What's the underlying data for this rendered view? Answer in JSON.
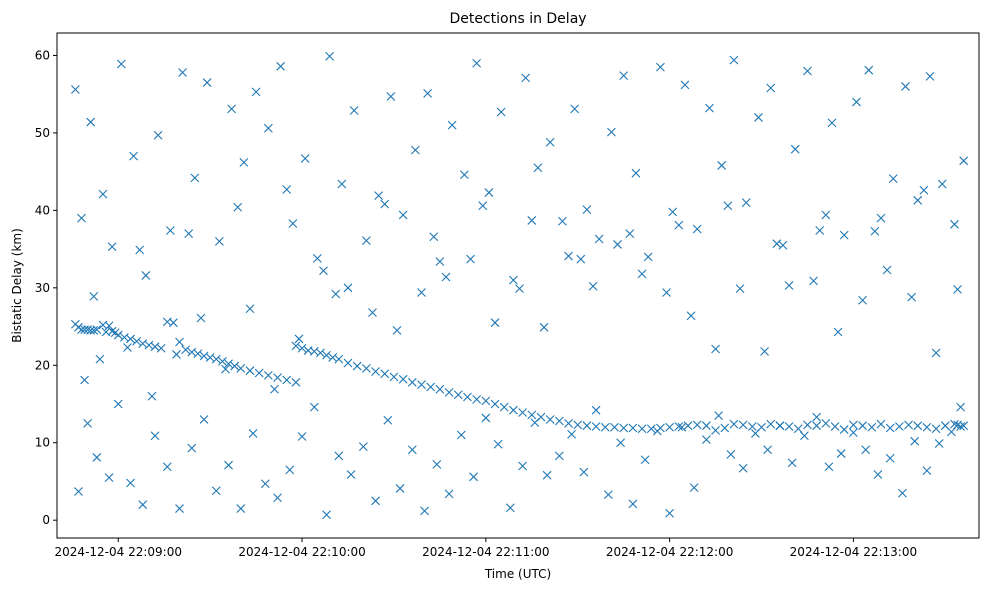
{
  "chart_data": {
    "type": "scatter",
    "title": "Detections in Delay",
    "xlabel": "Time (UTC)",
    "ylabel": "Bistatic Delay (km)",
    "marker": "x",
    "color": "#1f77b4",
    "xlim": [
      "2024-12-04 22:08:40",
      "2024-12-04 22:13:41"
    ],
    "ylim": [
      -2.3,
      62.9
    ],
    "xticks": [
      "2024-12-04 22:09:00",
      "2024-12-04 22:10:00",
      "2024-12-04 22:11:00",
      "2024-12-04 22:12:00",
      "2024-12-04 22:13:00"
    ],
    "yticks": [
      0,
      10,
      20,
      30,
      40,
      50,
      60
    ],
    "grid": false,
    "legend": "none",
    "series": [
      {
        "x": [
          "22:08:46",
          "22:08:47",
          "22:08:48",
          "22:08:49",
          "22:08:50",
          "22:08:51",
          "22:08:52",
          "22:08:53",
          "22:08:55",
          "22:08:56",
          "22:08:57",
          "22:08:58",
          "22:08:59",
          "22:09:00",
          "22:09:02",
          "22:09:04",
          "22:09:06",
          "22:09:08",
          "22:09:10",
          "22:09:12",
          "22:09:14",
          "22:09:16",
          "22:09:18",
          "22:09:20",
          "22:09:22",
          "22:09:24",
          "22:09:26",
          "22:09:28",
          "22:09:30",
          "22:09:32",
          "22:09:34",
          "22:09:36",
          "22:09:38",
          "22:09:40",
          "22:09:43",
          "22:09:46",
          "22:09:49",
          "22:09:52",
          "22:09:55",
          "22:09:58",
          "22:09:58",
          "22:10:00",
          "22:10:02",
          "22:10:04",
          "22:10:06",
          "22:10:08",
          "22:10:10",
          "22:10:12",
          "22:10:15",
          "22:10:18",
          "22:10:21",
          "22:10:24",
          "22:10:27",
          "22:10:30",
          "22:10:33",
          "22:10:36",
          "22:10:39",
          "22:10:42",
          "22:10:45",
          "22:10:48",
          "22:10:51",
          "22:10:54",
          "22:10:57",
          "22:11:00",
          "22:11:03",
          "22:11:06",
          "22:11:09",
          "22:11:12",
          "22:11:15",
          "22:11:18",
          "22:11:21",
          "22:11:24",
          "22:11:27",
          "22:11:30",
          "22:11:33",
          "22:11:36",
          "22:11:39",
          "22:11:42",
          "22:11:45",
          "22:11:48",
          "22:11:51",
          "22:11:54",
          "22:11:57",
          "22:12:00",
          "22:12:03",
          "22:12:06",
          "22:12:09",
          "22:12:12",
          "22:12:15",
          "22:12:18",
          "22:12:21",
          "22:12:24",
          "22:12:27",
          "22:12:30",
          "22:12:33",
          "22:12:36",
          "22:12:39",
          "22:12:42",
          "22:12:45",
          "22:12:48",
          "22:12:51",
          "22:12:54",
          "22:12:57",
          "22:13:00",
          "22:13:03",
          "22:13:06",
          "22:13:09",
          "22:13:12",
          "22:13:15",
          "22:13:18",
          "22:13:21",
          "22:13:24",
          "22:13:27",
          "22:13:30",
          "22:13:33",
          "22:13:34",
          "22:13:35",
          "22:13:36",
          "22:08:46",
          "22:08:48",
          "22:08:51",
          "22:08:55",
          "22:08:58",
          "22:09:01",
          "22:09:05",
          "22:09:09",
          "22:09:13",
          "22:09:17",
          "22:09:21",
          "22:09:25",
          "22:09:29",
          "22:09:33",
          "22:09:37",
          "22:09:41",
          "22:09:45",
          "22:09:49",
          "22:09:53",
          "22:09:57",
          "22:10:01",
          "22:10:05",
          "22:10:09",
          "22:10:13",
          "22:10:17",
          "22:10:21",
          "22:10:25",
          "22:10:29",
          "22:10:33",
          "22:10:37",
          "22:10:41",
          "22:10:45",
          "22:10:49",
          "22:10:53",
          "22:10:57",
          "22:11:01",
          "22:11:05",
          "22:11:09",
          "22:11:13",
          "22:11:17",
          "22:11:21",
          "22:11:25",
          "22:11:29",
          "22:11:33",
          "22:11:37",
          "22:11:41",
          "22:11:45",
          "22:11:49",
          "22:11:53",
          "22:11:57",
          "22:12:01",
          "22:12:05",
          "22:12:09",
          "22:12:13",
          "22:12:17",
          "22:12:21",
          "22:12:25",
          "22:12:29",
          "22:12:33",
          "22:12:37",
          "22:12:41",
          "22:12:45",
          "22:12:49",
          "22:12:53",
          "22:12:57",
          "22:13:01",
          "22:13:05",
          "22:13:09",
          "22:13:13",
          "22:13:17",
          "22:13:21",
          "22:13:25",
          "22:13:29",
          "22:13:33",
          "22:13:36",
          "22:08:47",
          "22:08:50",
          "22:08:53",
          "22:08:57",
          "22:09:00",
          "22:09:04",
          "22:09:08",
          "22:09:12",
          "22:09:16",
          "22:09:20",
          "22:09:24",
          "22:09:28",
          "22:09:32",
          "22:09:36",
          "22:09:40",
          "22:09:44",
          "22:09:48",
          "22:09:52",
          "22:09:56",
          "22:10:00",
          "22:10:04",
          "22:10:08",
          "22:10:12",
          "22:10:16",
          "22:10:20",
          "22:10:24",
          "22:10:28",
          "22:10:32",
          "22:10:36",
          "22:10:40",
          "22:10:44",
          "22:10:48",
          "22:10:52",
          "22:10:56",
          "22:11:00",
          "22:11:04",
          "22:11:08",
          "22:11:12",
          "22:11:16",
          "22:11:20",
          "22:11:24",
          "22:11:28",
          "22:11:32",
          "22:11:36",
          "22:11:40",
          "22:11:44",
          "22:11:48",
          "22:11:52",
          "22:11:56",
          "22:12:00",
          "22:12:04",
          "22:12:08",
          "22:12:12",
          "22:12:16",
          "22:12:20",
          "22:12:24",
          "22:12:28",
          "22:12:32",
          "22:12:36",
          "22:12:40",
          "22:12:44",
          "22:12:48",
          "22:12:52",
          "22:12:56",
          "22:13:00",
          "22:13:04",
          "22:13:08",
          "22:13:12",
          "22:13:16",
          "22:13:20",
          "22:13:24",
          "22:13:28",
          "22:13:32",
          "22:13:35",
          "22:08:49",
          "22:08:54",
          "22:09:03",
          "22:09:11",
          "22:09:19",
          "22:09:27",
          "22:09:35",
          "22:09:43",
          "22:09:51",
          "22:09:59",
          "22:10:07",
          "22:10:15",
          "22:10:23",
          "22:10:31",
          "22:10:39",
          "22:10:47",
          "22:10:55",
          "22:11:03",
          "22:11:11",
          "22:11:19",
          "22:11:27",
          "22:11:35",
          "22:11:43",
          "22:11:51",
          "22:11:59",
          "22:12:07",
          "22:12:15",
          "22:12:23",
          "22:12:31",
          "22:12:39",
          "22:12:47",
          "22:12:55",
          "22:13:03",
          "22:13:11",
          "22:13:19",
          "22:13:27",
          "22:13:34",
          "22:08:52",
          "22:09:07",
          "22:09:23",
          "22:09:39",
          "22:09:55",
          "22:10:11",
          "22:10:27",
          "22:10:43",
          "22:10:59",
          "22:11:15",
          "22:11:31",
          "22:11:47",
          "22:12:03",
          "22:12:19",
          "22:12:35",
          "22:12:51",
          "22:13:07",
          "22:13:23"
        ],
        "y": [
          25.3,
          24.9,
          24.6,
          24.6,
          24.6,
          24.5,
          24.5,
          24.6,
          25.2,
          24.3,
          25.1,
          24.4,
          24.2,
          23.9,
          23.6,
          23.4,
          23.1,
          22.8,
          22.6,
          22.4,
          22.2,
          25.6,
          25.5,
          23.0,
          22.0,
          21.7,
          21.5,
          21.2,
          21.0,
          20.8,
          20.5,
          20.2,
          19.9,
          19.6,
          19.3,
          19.0,
          18.7,
          18.4,
          18.1,
          17.8,
          22.5,
          22.2,
          21.9,
          21.8,
          21.6,
          21.3,
          21.0,
          20.8,
          20.3,
          19.9,
          19.6,
          19.2,
          18.9,
          18.5,
          18.2,
          17.8,
          17.5,
          17.2,
          16.9,
          16.5,
          16.2,
          15.9,
          15.6,
          15.4,
          15.0,
          14.6,
          14.2,
          13.9,
          13.6,
          13.3,
          13.0,
          12.8,
          12.5,
          12.3,
          12.2,
          12.1,
          12.0,
          12.0,
          11.9,
          11.9,
          11.8,
          11.8,
          11.9,
          12.0,
          12.1,
          12.2,
          12.3,
          12.2,
          11.6,
          11.9,
          12.4,
          12.3,
          12.1,
          12.0,
          12.4,
          12.2,
          12.1,
          11.8,
          12.3,
          12.2,
          12.5,
          12.1,
          11.7,
          12.3,
          12.2,
          12.0,
          12.4,
          11.9,
          12.1,
          12.3,
          12.2,
          12.0,
          11.8,
          12.2,
          12.4,
          12.3,
          12.1,
          12.2,
          55.6,
          39.0,
          51.4,
          42.1,
          35.3,
          58.9,
          47.0,
          31.6,
          49.7,
          37.4,
          57.8,
          44.2,
          56.5,
          36.0,
          53.1,
          46.2,
          55.3,
          50.6,
          58.6,
          38.3,
          46.7,
          33.8,
          59.9,
          43.4,
          52.9,
          36.1,
          41.9,
          54.7,
          39.4,
          47.8,
          55.1,
          33.4,
          51.0,
          44.6,
          59.0,
          42.3,
          52.7,
          31.0,
          57.1,
          45.5,
          48.8,
          38.6,
          53.1,
          40.1,
          36.3,
          50.1,
          57.4,
          44.8,
          34.0,
          58.5,
          39.8,
          56.2,
          37.6,
          53.2,
          45.8,
          59.4,
          41.0,
          52.0,
          55.8,
          35.5,
          47.9,
          58.0,
          37.4,
          51.3,
          36.8,
          54.0,
          58.1,
          39.0,
          44.1,
          56.0,
          41.3,
          57.3,
          43.4,
          38.2,
          46.4,
          3.7,
          12.5,
          8.1,
          5.5,
          15.0,
          4.8,
          2.0,
          10.9,
          6.9,
          1.5,
          9.3,
          13.0,
          3.8,
          7.1,
          1.5,
          11.2,
          4.7,
          2.9,
          6.5,
          10.8,
          14.6,
          0.7,
          8.3,
          5.9,
          9.5,
          2.5,
          12.9,
          4.1,
          9.1,
          1.2,
          7.2,
          3.4,
          11.0,
          5.6,
          13.2,
          9.8,
          1.6,
          7.0,
          12.6,
          5.8,
          8.3,
          11.1,
          6.2,
          14.2,
          3.3,
          10.0,
          2.1,
          7.8,
          11.5,
          0.9,
          12.0,
          4.2,
          10.4,
          13.5,
          8.5,
          6.7,
          11.2,
          9.1,
          12.2,
          7.4,
          10.9,
          13.3,
          6.9,
          8.6,
          11.3,
          9.1,
          5.9,
          8.0,
          3.5,
          10.2,
          6.4,
          9.9,
          11.4,
          14.6,
          18.1,
          20.8,
          22.3,
          16.0,
          21.4,
          26.1,
          19.5,
          27.3,
          16.9,
          23.4,
          32.2,
          30.0,
          26.8,
          24.5,
          29.4,
          31.4,
          33.7,
          25.5,
          29.9,
          24.9,
          34.1,
          30.2,
          35.6,
          31.8,
          29.4,
          26.4,
          22.1,
          29.9,
          21.8,
          30.3,
          30.9,
          24.3,
          28.4,
          32.3,
          28.8,
          21.6,
          29.8,
          28.9,
          34.9,
          37.0,
          40.4,
          42.7,
          29.2,
          40.8,
          36.6,
          40.6,
          38.7,
          33.7,
          37.0,
          38.1,
          40.6,
          35.7,
          39.4,
          37.3,
          42.6
        ]
      }
    ]
  }
}
